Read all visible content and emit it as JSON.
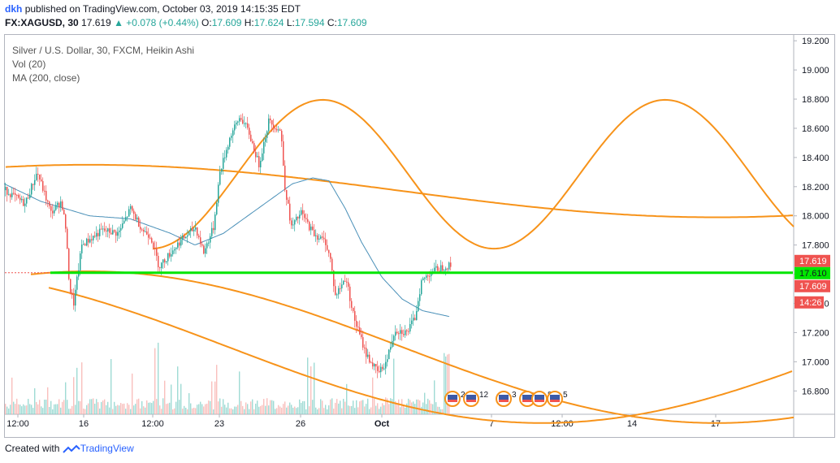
{
  "header": {
    "user": "dkh",
    "published_text": "published on TradingView.com, October 03, 2019 14:15:35 EDT",
    "symbol": "FX:XAGUSD, 30",
    "last": "17.619",
    "change": "+0.078 (+0.44%)",
    "o_label": "O:",
    "o_value": "17.609",
    "h_label": "H:",
    "h_value": "17.624",
    "l_label": "L:",
    "l_value": "17.594",
    "c_label": "C:",
    "c_value": "17.609"
  },
  "legend": {
    "title": "Silver / U.S. Dollar, 30, FXCM, Heikin Ashi",
    "vol": "Vol (20)",
    "ma": "MA (200, close)"
  },
  "price_tags": {
    "current": "17.619",
    "line": "17.610",
    "ma_close": "17.609",
    "countdown": "14:26"
  },
  "events": [
    {
      "count": "2",
      "x": 557
    },
    {
      "count": "12",
      "x": 580
    },
    {
      "count": "3",
      "x": 620
    },
    {
      "count": "8",
      "x": 649
    },
    {
      "count": "8",
      "x": 664
    },
    {
      "count": "5",
      "x": 683
    }
  ],
  "footer": {
    "created": "Created with",
    "brand": "TradingView"
  },
  "colors": {
    "bull": "#26a69a",
    "bear": "#ef5350",
    "ma": "#4a90b8",
    "sine": "#f7931a",
    "level": "#00e600",
    "tag_red": "#ef5350"
  },
  "chart_data": {
    "type": "candlestick",
    "ylim": [
      16.64,
      19.24
    ],
    "y_ticks": [
      "19.200",
      "19.000",
      "18.800",
      "18.600",
      "18.400",
      "18.200",
      "18.000",
      "17.800",
      "17.600",
      "17.400",
      "17.200",
      "17.000",
      "16.800"
    ],
    "y_tick_values": [
      19.2,
      19.0,
      18.8,
      18.6,
      18.4,
      18.2,
      18.0,
      17.8,
      17.6,
      17.4,
      17.2,
      17.0,
      16.8
    ],
    "x_ticks": [
      "12:00",
      "16",
      "12:00",
      "23",
      "26",
      "Oct",
      "7",
      "12:00",
      "14",
      "17"
    ],
    "horizontal_level": 17.61,
    "price_path": [
      [
        0,
        18.2
      ],
      [
        30,
        18.08
      ],
      [
        45,
        18.3
      ],
      [
        62,
        18.02
      ],
      [
        75,
        18.1
      ],
      [
        80,
        17.92
      ],
      [
        85,
        17.5
      ],
      [
        90,
        17.4
      ],
      [
        100,
        17.8
      ],
      [
        125,
        17.9
      ],
      [
        145,
        17.88
      ],
      [
        160,
        18.05
      ],
      [
        175,
        17.9
      ],
      [
        185,
        17.86
      ],
      [
        195,
        17.65
      ],
      [
        220,
        17.82
      ],
      [
        240,
        17.92
      ],
      [
        250,
        17.75
      ],
      [
        262,
        17.92
      ],
      [
        270,
        18.3
      ],
      [
        283,
        18.55
      ],
      [
        295,
        18.68
      ],
      [
        305,
        18.58
      ],
      [
        318,
        18.35
      ],
      [
        330,
        18.65
      ],
      [
        345,
        18.58
      ],
      [
        350,
        18.2
      ],
      [
        358,
        17.92
      ],
      [
        370,
        18.02
      ],
      [
        385,
        17.88
      ],
      [
        400,
        17.82
      ],
      [
        406,
        17.7
      ],
      [
        412,
        17.45
      ],
      [
        425,
        17.58
      ],
      [
        435,
        17.3
      ],
      [
        450,
        17.05
      ],
      [
        465,
        16.92
      ],
      [
        475,
        17.0
      ],
      [
        485,
        17.22
      ],
      [
        500,
        17.2
      ],
      [
        510,
        17.3
      ],
      [
        518,
        17.55
      ],
      [
        530,
        17.62
      ],
      [
        545,
        17.65
      ],
      [
        555,
        17.66
      ]
    ],
    "ma_path": [
      [
        5,
        18.22
      ],
      [
        50,
        18.1
      ],
      [
        110,
        18.0
      ],
      [
        160,
        17.98
      ],
      [
        210,
        17.88
      ],
      [
        240,
        17.8
      ],
      [
        275,
        17.88
      ],
      [
        305,
        18.0
      ],
      [
        335,
        18.12
      ],
      [
        360,
        18.22
      ],
      [
        385,
        18.26
      ],
      [
        405,
        18.24
      ],
      [
        425,
        18.05
      ],
      [
        445,
        17.82
      ],
      [
        470,
        17.58
      ],
      [
        495,
        17.43
      ],
      [
        520,
        17.35
      ],
      [
        553,
        17.31
      ]
    ],
    "sine_curves": [
      {
        "x0": 7,
        "x1": 978,
        "phase_x": 109,
        "period": 1546,
        "c": 18.17,
        "a": 0.18
      },
      {
        "x0": 38,
        "x1": 978,
        "phase_x": 109,
        "period": 1546,
        "c": 17.1,
        "a": 0.52
      },
      {
        "x0": 188,
        "x1": 978,
        "phase_x": 397,
        "period": 422,
        "c": 18.285,
        "a": 0.51
      },
      {
        "x0": 60,
        "x1": 977,
        "phase_x": -105,
        "period": 1546,
        "c": 17.1,
        "a": 0.52
      }
    ]
  }
}
